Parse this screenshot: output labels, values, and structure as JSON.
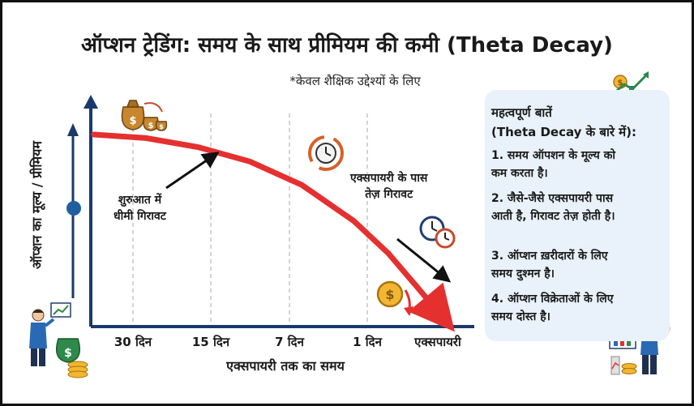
{
  "title": "ऑप्शन ट्रेडिंग: समय के साथ प्रीमियम की कमी (Theta Decay)",
  "subtitle": "*केवल शैक्षिक उद्देश्यों के लिए",
  "chart_data": {
    "type": "line",
    "title": "ऑप्शन ट्रेडिंग: समय के साथ प्रीमियम की कमी (Theta Decay)",
    "xlabel": "एक्सपायरी तक का समय",
    "ylabel": "ऑप्शन का मूल्य / प्रीमियम",
    "categories": [
      "30 दिन",
      "15 दिन",
      "7 दिन",
      "1 दिन",
      "एक्सपायरी"
    ],
    "series": [
      {
        "name": "premium",
        "x": [
          0,
          0.15,
          0.3,
          0.45,
          0.6,
          0.75,
          0.85,
          0.93,
          1.0
        ],
        "values": [
          1.0,
          0.98,
          0.93,
          0.85,
          0.72,
          0.52,
          0.34,
          0.16,
          0.0
        ]
      }
    ],
    "annotations": [
      {
        "lines": [
          "शुरुआत में",
          "धीमी गिरावट"
        ]
      },
      {
        "lines": [
          "एक्सपायरी के पास",
          "तेज़ गिरावट"
        ]
      }
    ]
  },
  "panel": {
    "heading": [
      "महत्वपूर्ण बातें",
      "(Theta Decay के बारे में):"
    ],
    "points": [
      {
        "lines": [
          "1. समय ऑपशन के मूल्य को",
          "    कम करता है।"
        ]
      },
      {
        "lines": [
          "2. जैसे-जैसे एक्सपायरी पास",
          "    आती है, गिरावट तेज़ होती है।"
        ]
      },
      {
        "lines": [
          "3. ऑप्शन ख़रीदारों के लिए",
          "    समय दुश्मन है।"
        ]
      },
      {
        "lines": [
          "4. ऑप्शन विक्रेताओं के लिए",
          "    समय दोस्त है।"
        ]
      }
    ]
  },
  "icons": [
    "money-bags-icon",
    "clock-cycle-icon",
    "alarm-clocks-icon",
    "falling-coin-icon",
    "growth-chart-icon",
    "presenter-person-icon",
    "analyst-person-icon"
  ],
  "colors": {
    "curve": "#e53030",
    "axis": "#1a3a6a",
    "panel": "#e9f1fa",
    "dot": "#1f5fa0"
  }
}
